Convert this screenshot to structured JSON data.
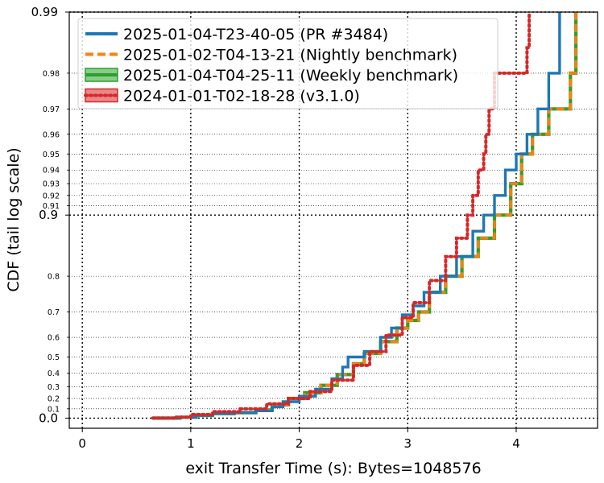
{
  "chart_data": {
    "type": "line",
    "xlabel": "exit Transfer Time (s): Bytes=1048576",
    "ylabel": "CDF (tail log scale)",
    "xlim": [
      -0.12,
      4.75
    ],
    "x_ticks": [
      "0",
      "1",
      "2",
      "3",
      "4"
    ],
    "y_scale": "tail-log (1 - log10(1 - p))",
    "y_major_ticks": [
      {
        "value": 0.0,
        "label": "0.0"
      },
      {
        "value": 0.9,
        "label": "0.9"
      },
      {
        "value": 0.99,
        "label": "0.99"
      }
    ],
    "y_minor_ticks": [
      {
        "value": 0.1,
        "label": "0.1"
      },
      {
        "value": 0.2,
        "label": "0.2"
      },
      {
        "value": 0.3,
        "label": "0.3"
      },
      {
        "value": 0.4,
        "label": "0.4"
      },
      {
        "value": 0.5,
        "label": "0.5"
      },
      {
        "value": 0.6,
        "label": "0.6"
      },
      {
        "value": 0.7,
        "label": "0.7"
      },
      {
        "value": 0.8,
        "label": "0.8"
      },
      {
        "value": 0.91,
        "label": "0.91"
      },
      {
        "value": 0.92,
        "label": "0.92"
      },
      {
        "value": 0.93,
        "label": "0.93"
      },
      {
        "value": 0.94,
        "label": "0.94"
      },
      {
        "value": 0.95,
        "label": "0.95"
      },
      {
        "value": 0.96,
        "label": "0.96"
      },
      {
        "value": 0.97,
        "label": "0.97"
      },
      {
        "value": 0.98,
        "label": "0.98"
      }
    ],
    "grid": true,
    "legend_position": "top-left",
    "series": [
      {
        "name": "2025-01-04-T23-40-05 (PR #3484)",
        "color": "#1f77b4",
        "style": "solid",
        "points": [
          [
            0.65,
            0.0
          ],
          [
            0.9,
            0.01
          ],
          [
            1.05,
            0.03
          ],
          [
            1.2,
            0.05
          ],
          [
            1.4,
            0.06
          ],
          [
            1.6,
            0.08
          ],
          [
            1.75,
            0.12
          ],
          [
            1.85,
            0.17
          ],
          [
            2.0,
            0.22
          ],
          [
            2.15,
            0.28
          ],
          [
            2.3,
            0.36
          ],
          [
            2.4,
            0.44
          ],
          [
            2.45,
            0.5
          ],
          [
            2.6,
            0.53
          ],
          [
            2.75,
            0.6
          ],
          [
            2.85,
            0.64
          ],
          [
            2.95,
            0.69
          ],
          [
            3.05,
            0.72
          ],
          [
            3.15,
            0.76
          ],
          [
            3.3,
            0.8
          ],
          [
            3.45,
            0.84
          ],
          [
            3.6,
            0.88
          ],
          [
            3.7,
            0.9
          ],
          [
            3.8,
            0.92
          ],
          [
            3.9,
            0.94
          ],
          [
            4.0,
            0.95
          ],
          [
            4.1,
            0.96
          ],
          [
            4.2,
            0.97
          ],
          [
            4.3,
            0.98
          ],
          [
            4.4,
            0.99
          ]
        ]
      },
      {
        "name": "2025-01-02-T04-13-21 (Nightly benchmark)",
        "color": "#ff7f0e",
        "style": "dashed",
        "points": [
          [
            0.65,
            0.0
          ],
          [
            0.9,
            0.01
          ],
          [
            1.05,
            0.03
          ],
          [
            1.2,
            0.05
          ],
          [
            1.4,
            0.06
          ],
          [
            1.6,
            0.09
          ],
          [
            1.75,
            0.14
          ],
          [
            1.9,
            0.2
          ],
          [
            2.05,
            0.25
          ],
          [
            2.2,
            0.31
          ],
          [
            2.35,
            0.39
          ],
          [
            2.5,
            0.46
          ],
          [
            2.6,
            0.52
          ],
          [
            2.75,
            0.58
          ],
          [
            2.9,
            0.64
          ],
          [
            3.0,
            0.67
          ],
          [
            3.1,
            0.7
          ],
          [
            3.2,
            0.76
          ],
          [
            3.35,
            0.8
          ],
          [
            3.5,
            0.84
          ],
          [
            3.65,
            0.87
          ],
          [
            3.8,
            0.9
          ],
          [
            3.95,
            0.93
          ],
          [
            4.05,
            0.95
          ],
          [
            4.15,
            0.96
          ],
          [
            4.3,
            0.97
          ],
          [
            4.5,
            0.98
          ],
          [
            4.55,
            0.99
          ]
        ]
      },
      {
        "name": "2025-01-04-T04-25-11 (Weekly benchmark)",
        "color": "#2ca02c",
        "style": "solid",
        "points": [
          [
            0.65,
            0.0
          ],
          [
            0.9,
            0.01
          ],
          [
            1.05,
            0.03
          ],
          [
            1.2,
            0.05
          ],
          [
            1.4,
            0.06
          ],
          [
            1.6,
            0.09
          ],
          [
            1.75,
            0.14
          ],
          [
            1.9,
            0.2
          ],
          [
            2.05,
            0.25
          ],
          [
            2.2,
            0.31
          ],
          [
            2.35,
            0.39
          ],
          [
            2.5,
            0.46
          ],
          [
            2.6,
            0.52
          ],
          [
            2.75,
            0.58
          ],
          [
            2.9,
            0.64
          ],
          [
            3.0,
            0.67
          ],
          [
            3.1,
            0.7
          ],
          [
            3.2,
            0.76
          ],
          [
            3.35,
            0.8
          ],
          [
            3.5,
            0.84
          ],
          [
            3.65,
            0.87
          ],
          [
            3.8,
            0.9
          ],
          [
            3.95,
            0.93
          ],
          [
            4.05,
            0.95
          ],
          [
            4.15,
            0.96
          ],
          [
            4.3,
            0.97
          ],
          [
            4.5,
            0.98
          ],
          [
            4.55,
            0.99
          ]
        ]
      },
      {
        "name": "2024-01-01-T02-18-28 (v3.1.0)",
        "color": "#d62728",
        "style": "dotted",
        "points": [
          [
            0.65,
            0.0
          ],
          [
            0.85,
            0.01
          ],
          [
            1.0,
            0.04
          ],
          [
            1.2,
            0.07
          ],
          [
            1.45,
            0.1
          ],
          [
            1.7,
            0.15
          ],
          [
            1.9,
            0.2
          ],
          [
            2.1,
            0.26
          ],
          [
            2.3,
            0.35
          ],
          [
            2.5,
            0.45
          ],
          [
            2.65,
            0.53
          ],
          [
            2.8,
            0.61
          ],
          [
            2.95,
            0.68
          ],
          [
            3.05,
            0.73
          ],
          [
            3.2,
            0.79
          ],
          [
            3.35,
            0.84
          ],
          [
            3.45,
            0.87
          ],
          [
            3.55,
            0.9
          ],
          [
            3.6,
            0.92
          ],
          [
            3.65,
            0.94
          ],
          [
            3.7,
            0.95
          ],
          [
            3.72,
            0.96
          ],
          [
            3.75,
            0.97
          ],
          [
            3.8,
            0.98
          ],
          [
            4.1,
            0.985
          ],
          [
            4.12,
            0.99
          ]
        ]
      }
    ]
  }
}
